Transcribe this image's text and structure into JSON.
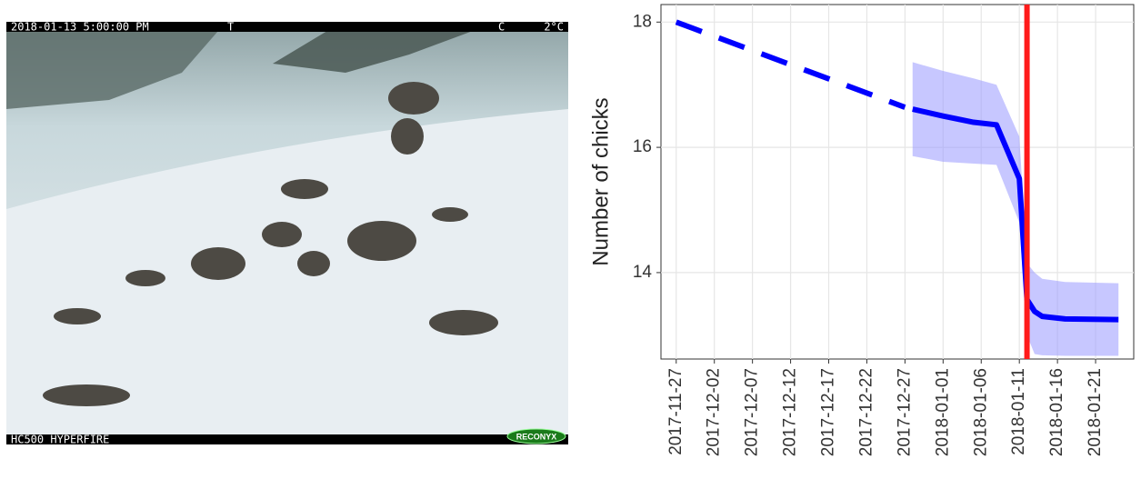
{
  "photo": {
    "stamp_datetime": "2018-01-13 5:00:00 PM",
    "stamp_flag": "T",
    "stamp_moon": "C",
    "stamp_temp": "2°C",
    "camera_model": "HC500 HYPERFIRE",
    "brand": "RECONYX"
  },
  "chart_data": {
    "type": "line",
    "y_label": "Number of chicks",
    "x": [
      "2017-11-27",
      "2017-12-27",
      "2017-12-28",
      "2018-01-01",
      "2018-01-05",
      "2018-01-08",
      "2018-01-11",
      "2018-01-12",
      "2018-01-13",
      "2018-01-14",
      "2018-01-17",
      "2018-01-24"
    ],
    "series": [
      {
        "color": "#0000ff",
        "dashed": true,
        "values": [
          18.0,
          16.64,
          null,
          null,
          null,
          null,
          null,
          null,
          null,
          null,
          null,
          null
        ]
      },
      {
        "color": "#0000ff",
        "dashed": false,
        "values": [
          null,
          null,
          16.61,
          16.5,
          16.4,
          16.36,
          15.5,
          13.57,
          13.38,
          13.3,
          13.26,
          13.25
        ]
      }
    ],
    "band": {
      "color": "#9999ff",
      "upper": [
        null,
        null,
        17.36,
        17.22,
        17.1,
        17.0,
        16.17,
        14.15,
        14.0,
        13.9,
        13.85,
        13.83
      ],
      "lower": [
        null,
        null,
        15.86,
        15.77,
        15.74,
        15.72,
        14.8,
        13.0,
        12.7,
        12.68,
        12.67,
        12.67
      ]
    },
    "vline": {
      "x": "2018-01-12",
      "color": "#ff1a1a"
    },
    "xlim": [
      "2017-11-25",
      "2018-01-26"
    ],
    "xticks": [
      "2017-11-27",
      "2017-12-02",
      "2017-12-07",
      "2017-12-12",
      "2017-12-17",
      "2017-12-22",
      "2017-12-27",
      "2018-01-01",
      "2018-01-06",
      "2018-01-11",
      "2018-01-16",
      "2018-01-21"
    ],
    "ylim": [
      12.62,
      18.28
    ],
    "yticks": [
      14,
      16,
      18
    ],
    "grid": true
  }
}
